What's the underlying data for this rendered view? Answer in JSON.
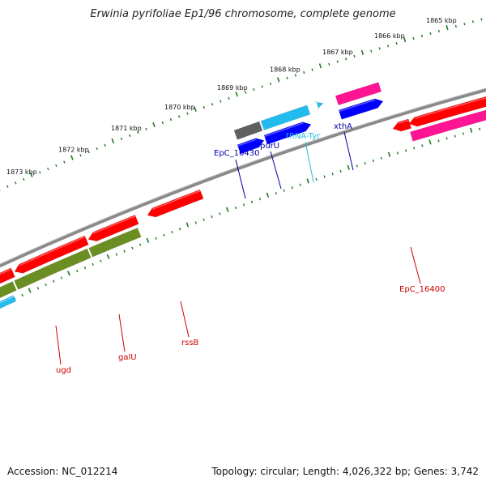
{
  "title": "Erwinia pyrifoliae Ep1/96 chromosome, complete genome",
  "footer": {
    "accession": "Accession: NC_012214",
    "summary": "Topology: circular; Length: 4,026,322 bp; Genes: 3,742"
  },
  "colors": {
    "backbone": "#808080",
    "tick": "#1f7a1f",
    "red": "#ff0000",
    "pink": "#ff1493",
    "olive": "#6b8e23",
    "blue": "#0000ff",
    "cyan": "#22bbee",
    "gray": "#606060",
    "label_blue": "#0000aa",
    "label_red": "#cc0000",
    "label_cyan": "#22bbdd"
  },
  "outer_ticks": [
    {
      "label": "1873 kbp"
    },
    {
      "label": "1872 kbp"
    },
    {
      "label": "1871 kbp"
    },
    {
      "label": "1870 kbp"
    },
    {
      "label": "1869 kbp"
    },
    {
      "label": "1868 kbp"
    },
    {
      "label": "1867 kbp"
    },
    {
      "label": "1866 kbp"
    },
    {
      "label": "1865 kbp"
    }
  ],
  "gene_labels": [
    {
      "name": "EpC_16430",
      "color": "label_blue"
    },
    {
      "name": "purU",
      "color": "label_blue"
    },
    {
      "name": "tRNA-Tyr",
      "color": "label_cyan"
    },
    {
      "name": "xthA",
      "color": "label_blue"
    },
    {
      "name": "EpC_16400",
      "color": "label_red"
    },
    {
      "name": "ugd",
      "color": "label_red"
    },
    {
      "name": "galU",
      "color": "label_red"
    },
    {
      "name": "rssB",
      "color": "label_red"
    }
  ]
}
